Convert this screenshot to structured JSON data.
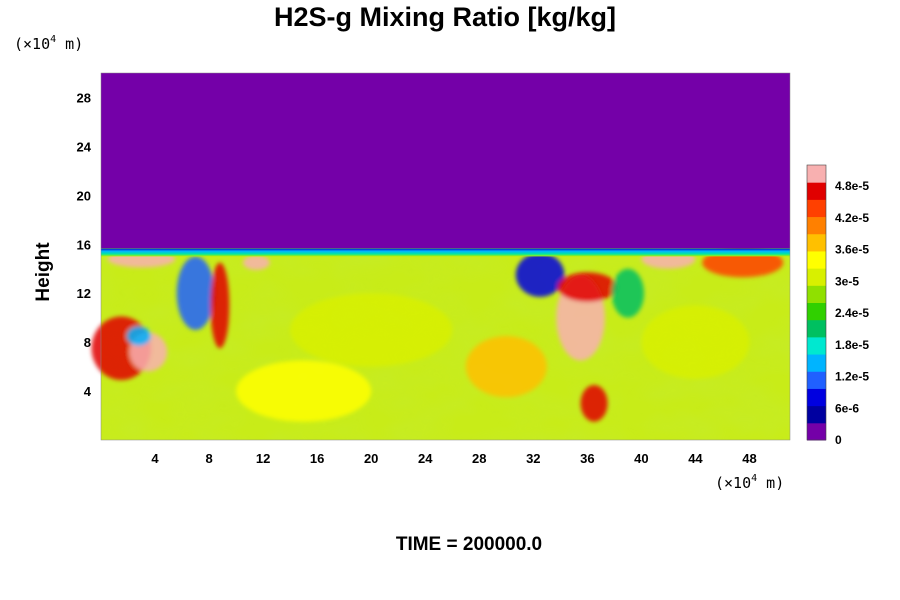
{
  "chart_data": {
    "type": "heatmap",
    "title": "H2S-g Mixing Ratio [kg/kg]",
    "ylabel": "Height",
    "x_unit": {
      "prefix": "(×10",
      "exponent": "4",
      "suffix": " m)"
    },
    "y_unit": {
      "prefix": "(×10",
      "exponent": "4",
      "suffix": " m)"
    },
    "xlim": [
      0,
      51
    ],
    "ylim": [
      0,
      30
    ],
    "x_ticks": [
      4,
      8,
      12,
      16,
      20,
      24,
      28,
      32,
      36,
      40,
      44,
      48
    ],
    "y_ticks": [
      4,
      8,
      12,
      16,
      20,
      24,
      28
    ],
    "colorbar": {
      "labels": [
        "0",
        "6e-6",
        "1.2e-5",
        "1.8e-5",
        "2.4e-5",
        "3e-5",
        "3.6e-5",
        "4.2e-5",
        "4.8e-5"
      ],
      "label_values": [
        0,
        6e-06,
        1.2e-05,
        1.8e-05,
        2.4e-05,
        3e-05,
        3.6e-05,
        4.2e-05,
        4.8e-05
      ],
      "range": [
        0,
        5.2e-05
      ],
      "colors": [
        "#7400a8",
        "#0000a0",
        "#0000e0",
        "#2060ff",
        "#00b4ff",
        "#00e8d0",
        "#00c060",
        "#30d000",
        "#90e000",
        "#d8f000",
        "#ffff00",
        "#ffc000",
        "#ff8000",
        "#ff4000",
        "#e00000",
        "#f8b0b0"
      ]
    },
    "field_description": {
      "upper_layer_value": 0,
      "interface_height": 15.5,
      "lower_layer_typical_value": 3.3e-05,
      "max_value": 5.2e-05
    },
    "footer": "TIME = 200000.0"
  }
}
